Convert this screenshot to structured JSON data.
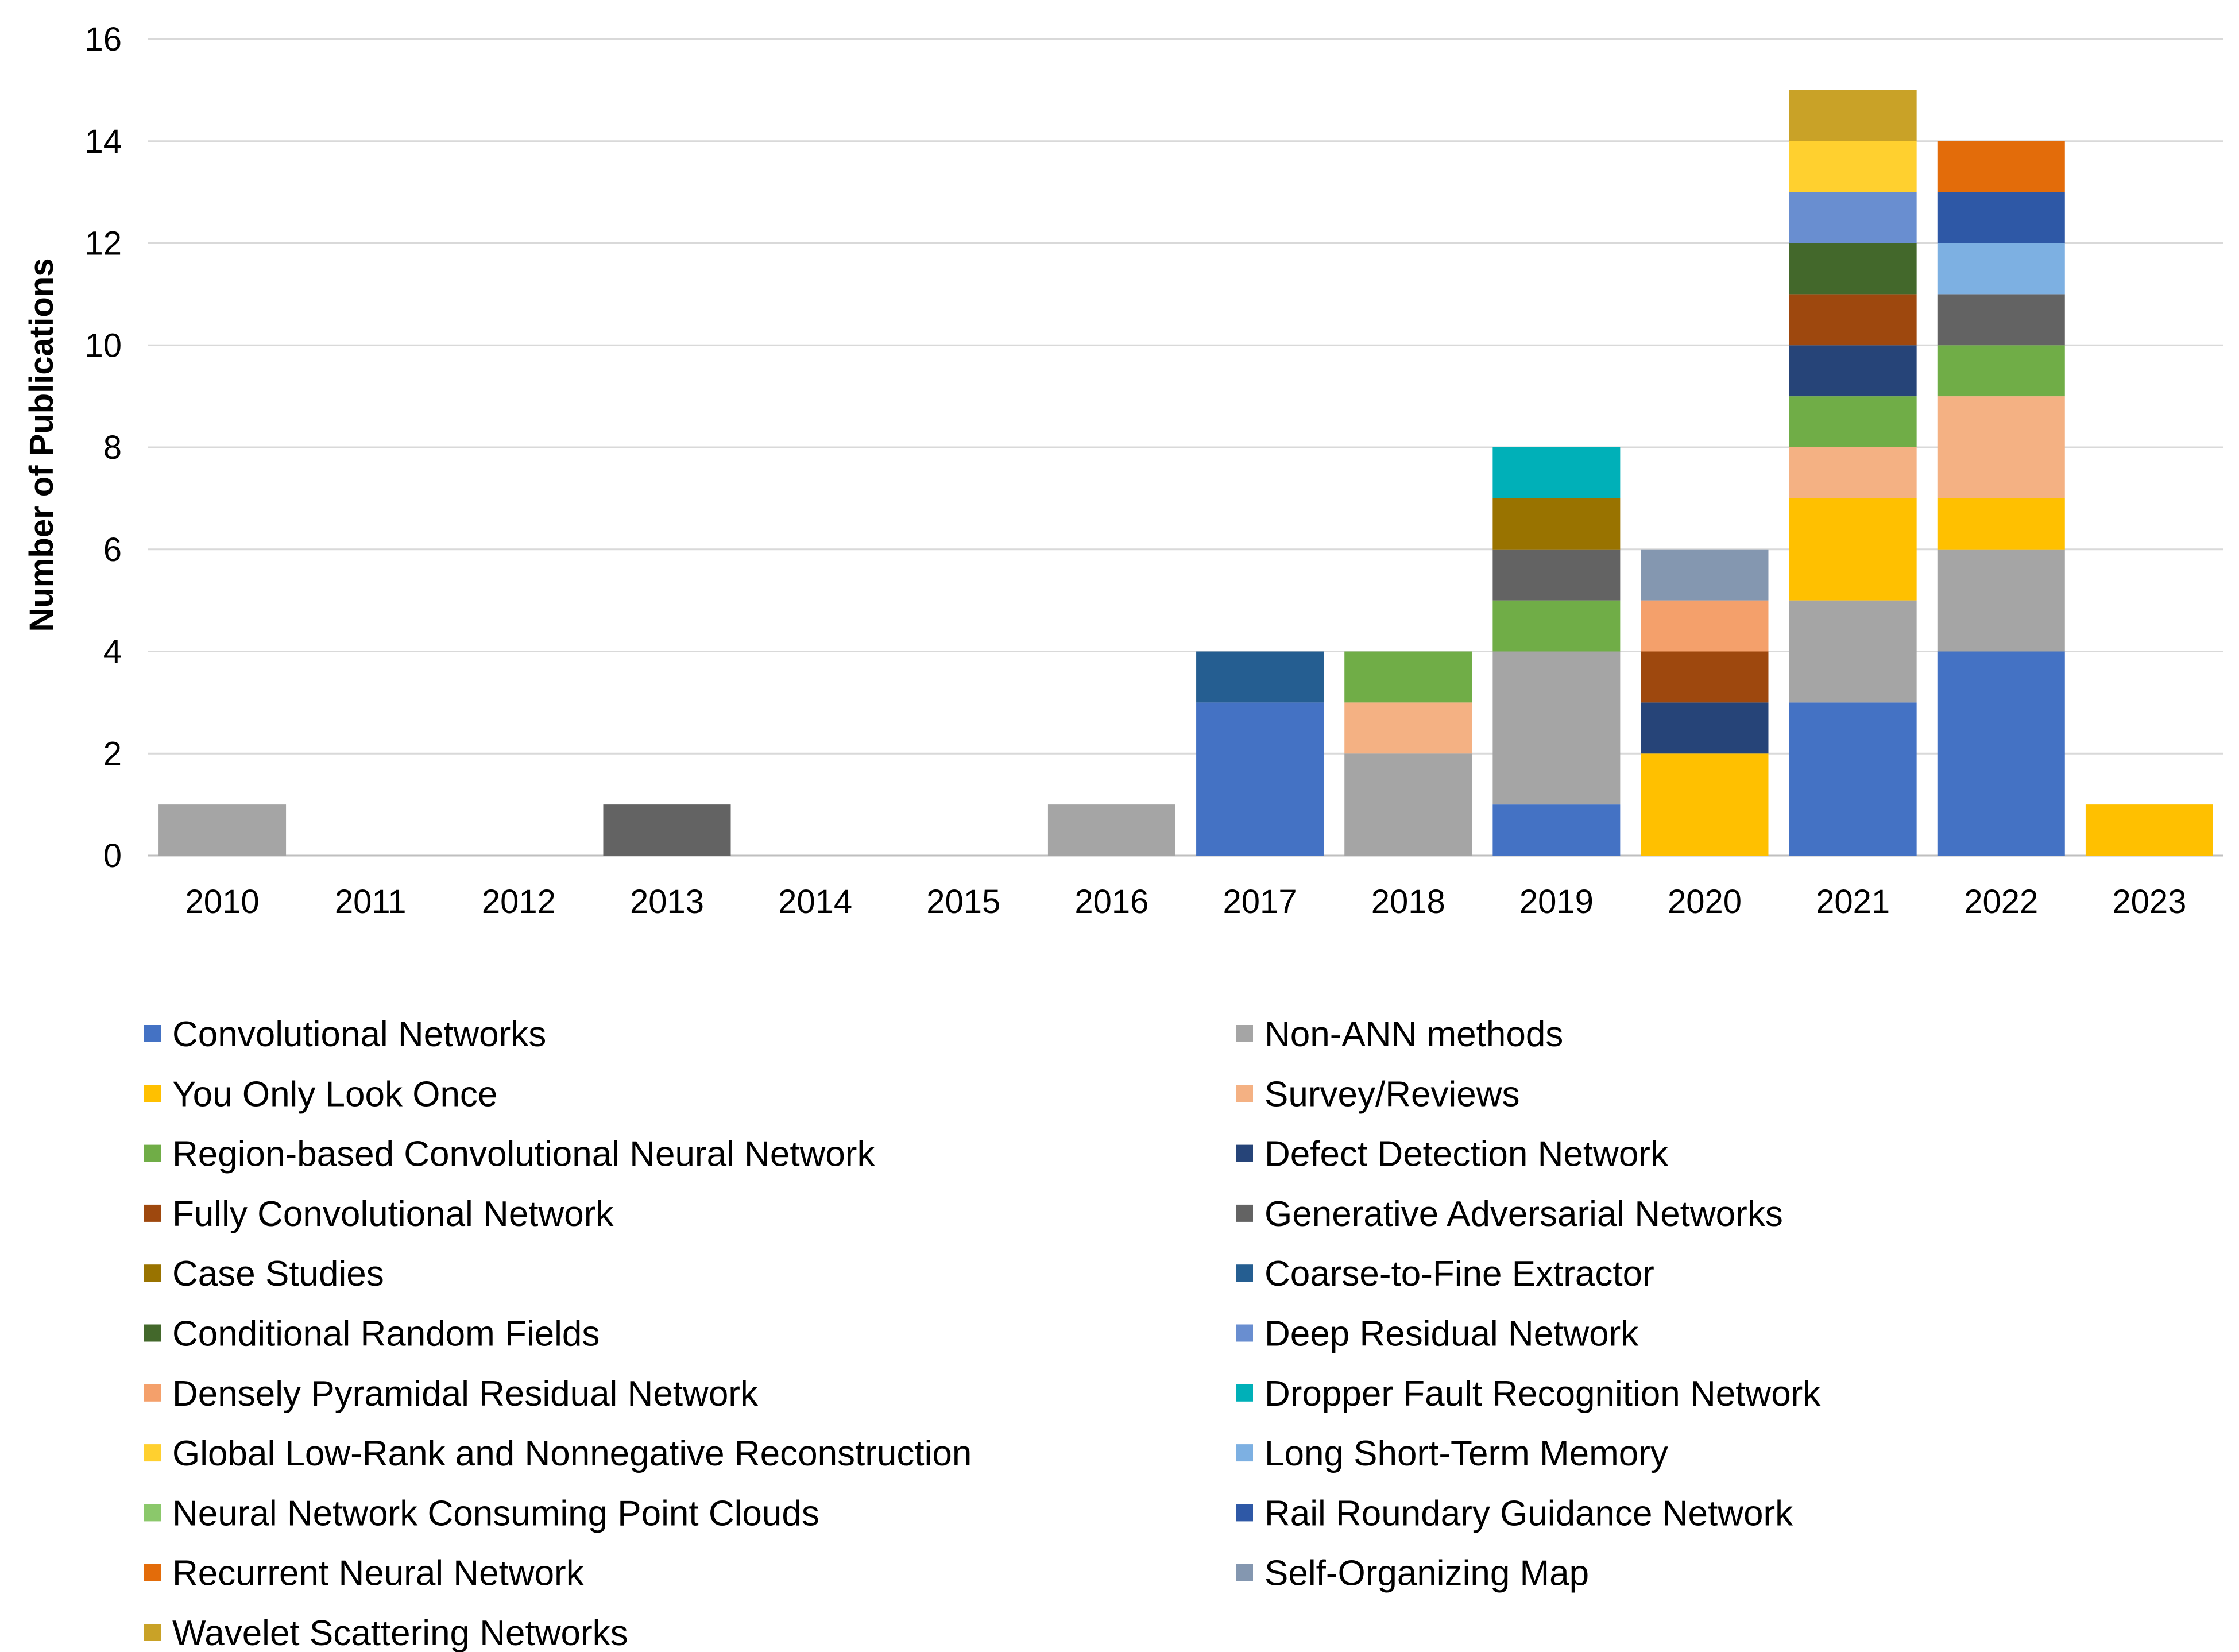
{
  "chart_data": {
    "type": "bar",
    "stacked": true,
    "title": "",
    "xlabel": "",
    "ylabel": "Number of Publications",
    "ylim": [
      0,
      16
    ],
    "yticks": [
      "0",
      "2",
      "4",
      "6",
      "8",
      "10",
      "12",
      "14",
      "16"
    ],
    "grid": true,
    "legend_position": "bottom",
    "categories": [
      "2010",
      "2011",
      "2012",
      "2013",
      "2014",
      "2015",
      "2016",
      "2017",
      "2018",
      "2019",
      "2020",
      "2021",
      "2022",
      "2023"
    ],
    "series": [
      {
        "name": "Convolutional Networks",
        "color": "#4472C4",
        "values": [
          0,
          0,
          0,
          0,
          0,
          0,
          0,
          3,
          0,
          1,
          0,
          3,
          4,
          0
        ]
      },
      {
        "name": "Non-ANN methods",
        "color": "#A5A5A5",
        "values": [
          1,
          0,
          0,
          0,
          0,
          0,
          1,
          0,
          2,
          3,
          0,
          2,
          2,
          0
        ]
      },
      {
        "name": "You Only Look Once",
        "color": "#FFC000",
        "values": [
          0,
          0,
          0,
          0,
          0,
          0,
          0,
          0,
          0,
          0,
          2,
          2,
          1,
          1
        ]
      },
      {
        "name": "Survey/Reviews",
        "color": "#F4B183",
        "values": [
          0,
          0,
          0,
          0,
          0,
          0,
          0,
          0,
          1,
          0,
          0,
          1,
          2,
          0
        ]
      },
      {
        "name": "Region-based Convolutional Neural Network",
        "color": "#70AD47",
        "values": [
          0,
          0,
          0,
          0,
          0,
          0,
          0,
          0,
          1,
          1,
          0,
          1,
          1,
          0
        ]
      },
      {
        "name": "Defect Detection Network",
        "color": "#264478",
        "values": [
          0,
          0,
          0,
          0,
          0,
          0,
          0,
          0,
          0,
          0,
          1,
          1,
          0,
          0
        ]
      },
      {
        "name": "Fully Convolutional Network",
        "color": "#9E480E",
        "values": [
          0,
          0,
          0,
          0,
          0,
          0,
          0,
          0,
          0,
          0,
          1,
          1,
          0,
          0
        ]
      },
      {
        "name": "Generative Adversarial Networks",
        "color": "#636363",
        "values": [
          0,
          0,
          0,
          1,
          0,
          0,
          0,
          0,
          0,
          1,
          0,
          0,
          1,
          0
        ]
      },
      {
        "name": "Case Studies",
        "color": "#997300",
        "values": [
          0,
          0,
          0,
          0,
          0,
          0,
          0,
          0,
          0,
          1,
          0,
          0,
          0,
          0
        ]
      },
      {
        "name": "Coarse-to-Fine Extractor",
        "color": "#255E91",
        "values": [
          0,
          0,
          0,
          0,
          0,
          0,
          0,
          1,
          0,
          0,
          0,
          0,
          0,
          0
        ]
      },
      {
        "name": "Conditional Random Fields",
        "color": "#43682B",
        "values": [
          0,
          0,
          0,
          0,
          0,
          0,
          0,
          0,
          0,
          0,
          0,
          1,
          0,
          0
        ]
      },
      {
        "name": "Deep Residual Network",
        "color": "#698ED0",
        "values": [
          0,
          0,
          0,
          0,
          0,
          0,
          0,
          0,
          0,
          0,
          0,
          1,
          0,
          0
        ]
      },
      {
        "name": "Densely Pyramidal Residual Network",
        "color": "#F4A06B",
        "values": [
          0,
          0,
          0,
          0,
          0,
          0,
          0,
          0,
          0,
          0,
          1,
          0,
          0,
          0
        ]
      },
      {
        "name": "Dropper Fault Recognition Network",
        "color": "#00B0B8",
        "values": [
          0,
          0,
          0,
          0,
          0,
          0,
          0,
          0,
          0,
          1,
          0,
          0,
          0,
          0
        ]
      },
      {
        "name": "Global Low-Rank and Nonnegative Reconstruction",
        "color": "#FFD02F",
        "values": [
          0,
          0,
          0,
          0,
          0,
          0,
          0,
          0,
          0,
          0,
          0,
          1,
          0,
          0
        ]
      },
      {
        "name": "Long Short-Term Memory",
        "color": "#7DB0E2",
        "values": [
          0,
          0,
          0,
          0,
          0,
          0,
          0,
          0,
          0,
          0,
          0,
          0,
          1,
          0
        ]
      },
      {
        "name": "Neural Network Consuming Point Clouds",
        "color": "#8BC86B",
        "values": [
          0,
          0,
          0,
          0,
          0,
          0,
          0,
          0,
          0,
          0,
          0,
          0,
          0,
          0
        ]
      },
      {
        "name": "Rail Roundary Guidance Network",
        "color": "#2E58A6",
        "values": [
          0,
          0,
          0,
          0,
          0,
          0,
          0,
          0,
          0,
          0,
          0,
          0,
          1,
          0
        ]
      },
      {
        "name": "Recurrent Neural Network",
        "color": "#E36C0A",
        "values": [
          0,
          0,
          0,
          0,
          0,
          0,
          0,
          0,
          0,
          0,
          0,
          0,
          1,
          0
        ]
      },
      {
        "name": "Self-Organizing Map",
        "color": "#8497B0",
        "values": [
          0,
          0,
          0,
          0,
          0,
          0,
          0,
          0,
          0,
          0,
          1,
          0,
          0,
          0
        ]
      },
      {
        "name": "Wavelet Scattering Networks",
        "color": "#C9A227",
        "values": [
          0,
          0,
          0,
          0,
          0,
          0,
          0,
          0,
          0,
          0,
          0,
          1,
          0,
          0
        ]
      }
    ]
  }
}
